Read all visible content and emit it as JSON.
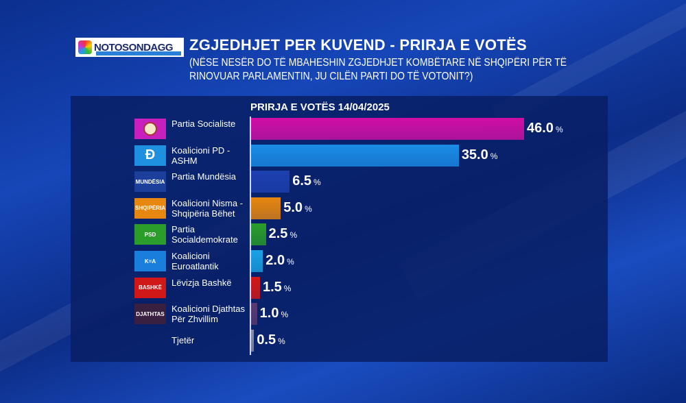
{
  "header": {
    "logo_text": "NOTOSONDAGGI",
    "title": "ZGJEDHJET PER KUVEND - PRIRJA E VOTËS",
    "subtitle": "(NËSE NESËR DO TË MBAHESHIN ZGJEDHJET KOMBËTARE NË SHQIPËRI PËR TË RINOVUAR PARLAMENTIN, JU CILËN PARTI DO TË VOTONIT?)"
  },
  "chart_data": {
    "type": "bar",
    "orientation": "horizontal",
    "title": "PRIRJA E VOTËS 14/04/2025",
    "unit": "%",
    "categories": [
      "Partia Socialiste",
      "Koalicioni PD - ASHM",
      "Partia Mundësia",
      "Koalicioni Nisma - Shqipëria Bëhet",
      "Partia Socialdemokrate",
      "Koalicioni Euroatlantik",
      "Lëvizja Bashkë",
      "Koalicioni Djathtas Për Zhvillim",
      "Tjetër"
    ],
    "values": [
      46.0,
      35.0,
      6.5,
      5.0,
      2.5,
      2.0,
      1.5,
      1.0,
      0.5
    ],
    "labels": [
      "46.0",
      "35.0",
      "6.5",
      "5.0",
      "2.5",
      "2.0",
      "1.5",
      "1.0",
      "0.5"
    ],
    "logo_texts": [
      "",
      "",
      "MUNDËSIA",
      "SHQIPËRIA",
      "PSD",
      "K=A",
      "BASHKË",
      "DJATHTAS",
      ""
    ],
    "colors": [
      "#d10fa6",
      "#1a8ce6",
      "#1c40b0",
      "#e8870f",
      "#2a9d2a",
      "#1aa3e6",
      "#d41818",
      "#5a3a72",
      "#8a90a8"
    ],
    "logo_colors": [
      "#c81fbf",
      "#1f8fe0",
      "#1d3f9c",
      "#e8870f",
      "#2a9d2a",
      "#1a7fdc",
      "#d01818",
      "#3a2040",
      "transparent"
    ],
    "xlim": [
      0,
      46
    ]
  }
}
